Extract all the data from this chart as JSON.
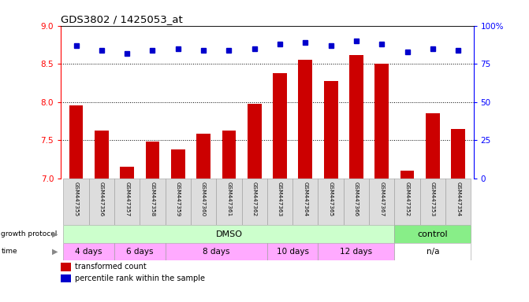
{
  "title": "GDS3802 / 1425053_at",
  "samples": [
    "GSM447355",
    "GSM447356",
    "GSM447357",
    "GSM447358",
    "GSM447359",
    "GSM447360",
    "GSM447361",
    "GSM447362",
    "GSM447363",
    "GSM447364",
    "GSM447365",
    "GSM447366",
    "GSM447367",
    "GSM447352",
    "GSM447353",
    "GSM447354"
  ],
  "bar_values": [
    7.95,
    7.63,
    7.15,
    7.48,
    7.38,
    7.58,
    7.63,
    7.98,
    8.38,
    8.55,
    8.27,
    8.62,
    8.5,
    7.1,
    7.85,
    7.65
  ],
  "dot_values": [
    87,
    84,
    82,
    84,
    85,
    84,
    84,
    85,
    88,
    89,
    87,
    90,
    88,
    83,
    85,
    84
  ],
  "bar_color": "#cc0000",
  "dot_color": "#0000cc",
  "ylim_left": [
    7.0,
    9.0
  ],
  "ylim_right": [
    0,
    100
  ],
  "yticks_left": [
    7.0,
    7.5,
    8.0,
    8.5,
    9.0
  ],
  "yticks_right": [
    0,
    25,
    50,
    75,
    100
  ],
  "ytick_labels_right": [
    "0",
    "25",
    "50",
    "75",
    "100%"
  ],
  "grid_lines": [
    7.5,
    8.0,
    8.5
  ],
  "legend": [
    {
      "label": "transformed count",
      "color": "#cc0000"
    },
    {
      "label": "percentile rank within the sample",
      "color": "#0000cc"
    }
  ],
  "dmso_color": "#ccffcc",
  "control_color": "#88ee88",
  "time_color": "#ffaaff",
  "na_color": "#ffffff",
  "background_color": "#ffffff",
  "tick_bg_color": "#dddddd",
  "time_boundaries": [
    [
      -0.5,
      1.5,
      "4 days"
    ],
    [
      1.5,
      3.5,
      "6 days"
    ],
    [
      3.5,
      7.5,
      "8 days"
    ],
    [
      7.5,
      9.5,
      "10 days"
    ],
    [
      9.5,
      12.5,
      "12 days"
    ],
    [
      12.5,
      15.5,
      "n/a"
    ]
  ]
}
